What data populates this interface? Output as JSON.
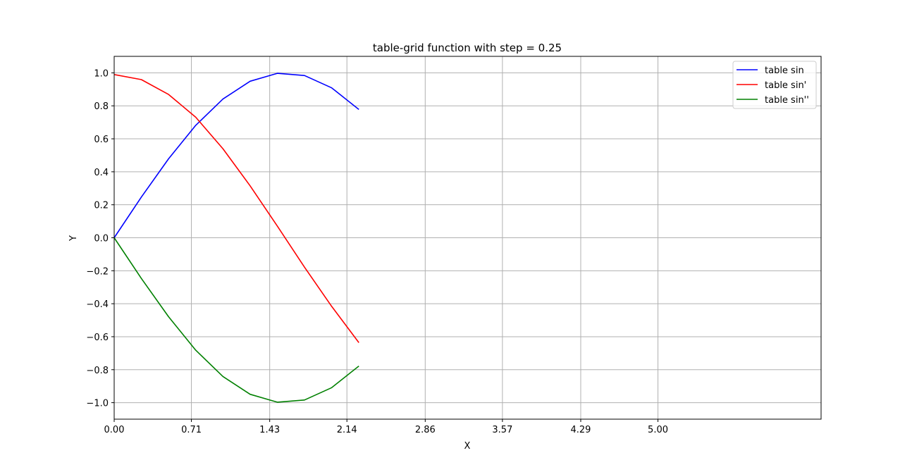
{
  "chart_data": {
    "type": "line",
    "title": "table-grid function with step = 0.25",
    "xlabel": "X",
    "ylabel": "Y",
    "xlim": [
      0,
      6.5
    ],
    "ylim": [
      -1.1,
      1.1
    ],
    "xticks": [
      0.0,
      0.71,
      1.43,
      2.14,
      2.86,
      3.57,
      4.29,
      5.0
    ],
    "xtick_labels": [
      "0.00",
      "0.71",
      "1.43",
      "2.14",
      "2.86",
      "3.57",
      "4.29",
      "5.00"
    ],
    "yticks": [
      1.0,
      0.8,
      0.6,
      0.4,
      0.2,
      0.0,
      -0.2,
      -0.4,
      -0.6,
      -0.8,
      -1.0
    ],
    "ytick_labels": [
      "1.0",
      "0.8",
      "0.6",
      "0.4",
      "0.2",
      "0.0",
      "−0.2",
      "−0.4",
      "−0.6",
      "−0.8",
      "−1.0"
    ],
    "grid": true,
    "legend_position": "top-right",
    "x": [
      0.0,
      0.25,
      0.5,
      0.75,
      1.0,
      1.25,
      1.5,
      1.75,
      2.0,
      2.25
    ],
    "series": [
      {
        "name": "table sin",
        "color": "#0000ff",
        "values": [
          0.0,
          0.247,
          0.479,
          0.682,
          0.841,
          0.949,
          0.997,
          0.984,
          0.909,
          0.778
        ]
      },
      {
        "name": "table sin'",
        "color": "#ff0000",
        "values": [
          0.99,
          0.959,
          0.869,
          0.731,
          0.54,
          0.315,
          0.071,
          -0.178,
          -0.416,
          -0.636
        ]
      },
      {
        "name": "table sin''",
        "color": "#008000",
        "values": [
          0.0,
          -0.247,
          -0.479,
          -0.682,
          -0.841,
          -0.949,
          -0.997,
          -0.984,
          -0.909,
          -0.778
        ]
      }
    ]
  }
}
